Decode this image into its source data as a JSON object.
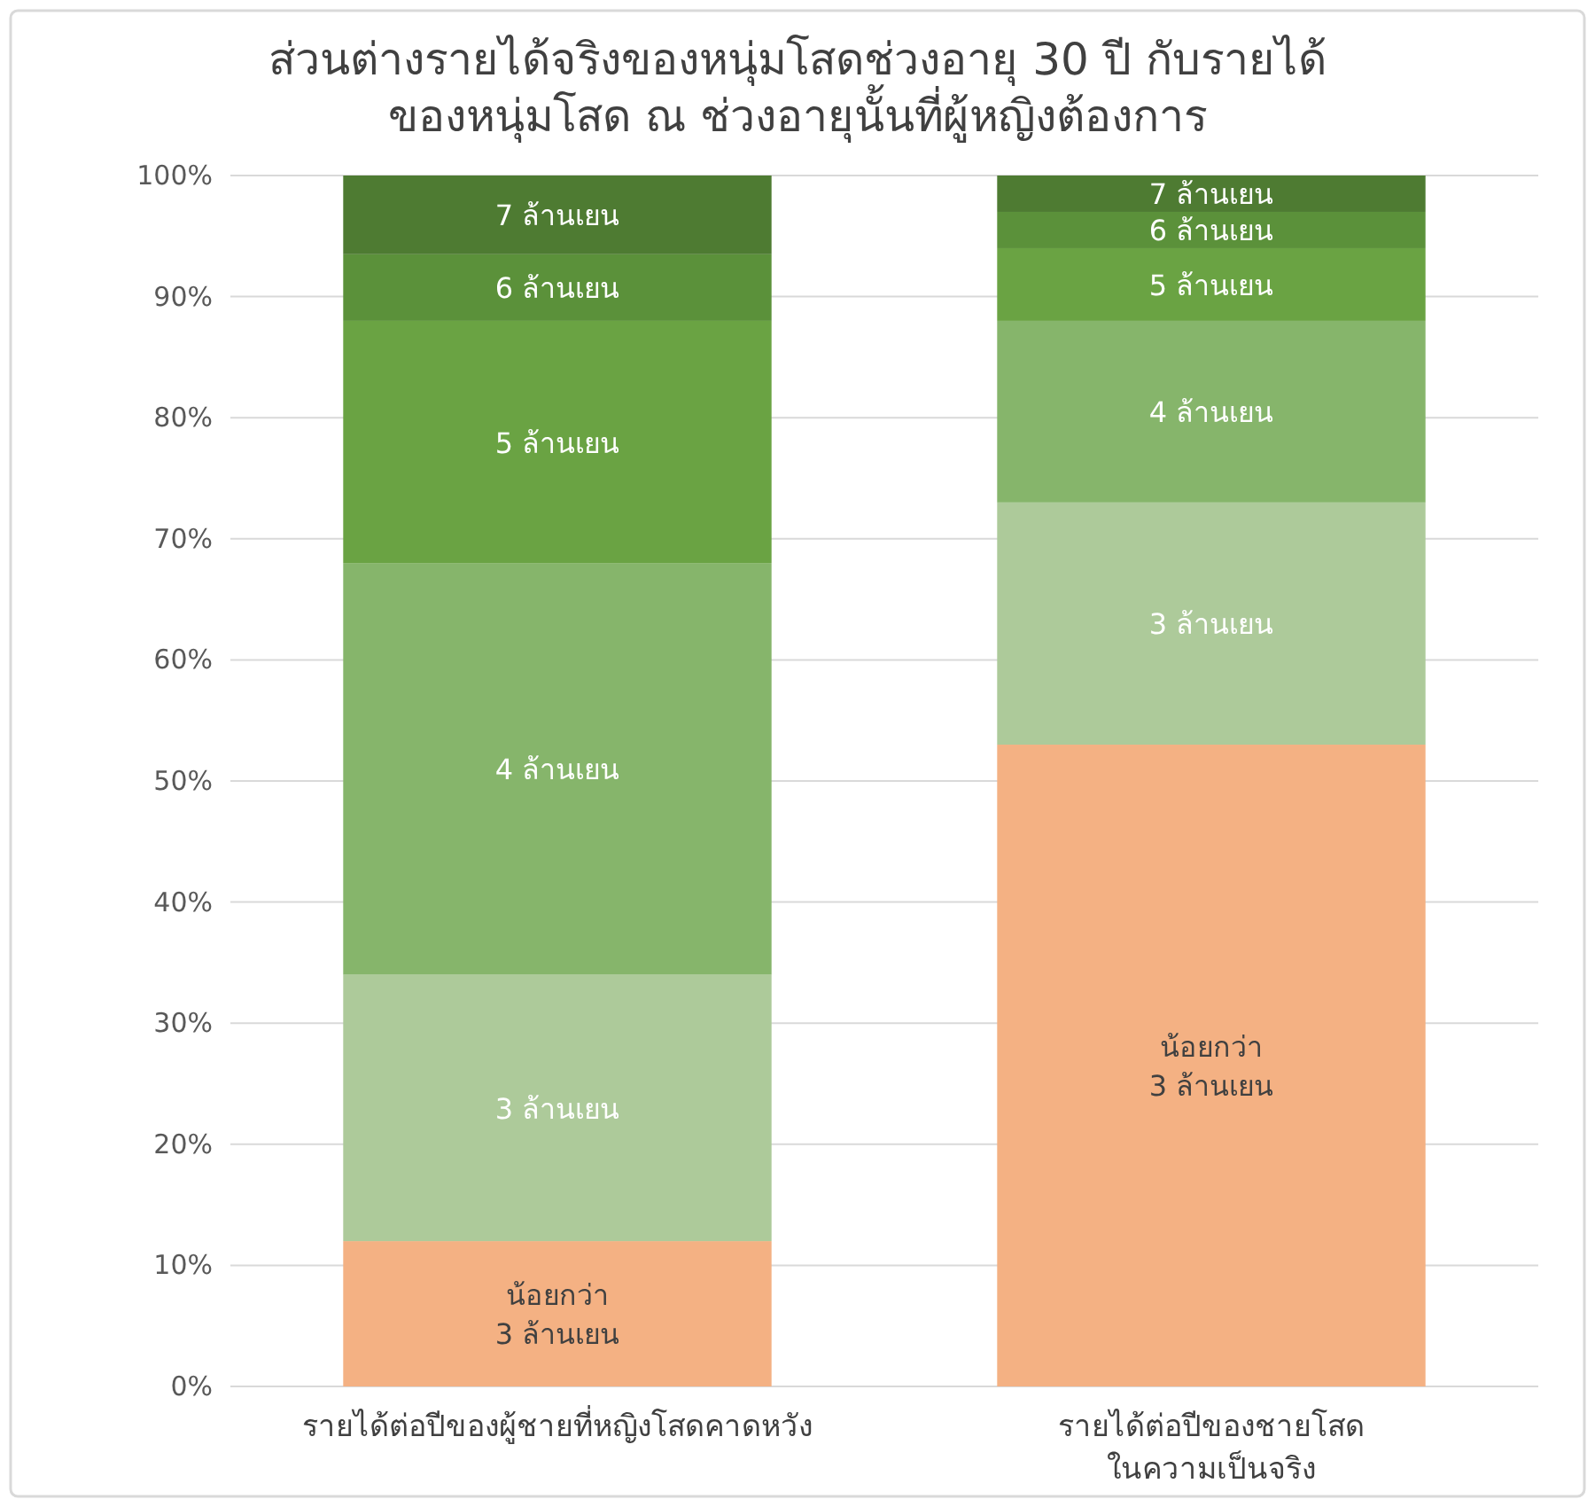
{
  "chart_data": {
    "type": "bar",
    "stacked": true,
    "title": "ส่วนต่างรายได้จริงของหนุ่มโสดช่วงอายุ 30 ปี กับรายได้\nของหนุ่มโสด ณ ช่วงอายุนั้นที่ผู้หญิงต้องการ",
    "categories": [
      "รายได้ต่อปีของผู้ชายที่หญิงโสดคาดหวัง",
      "รายได้ต่อปีของชายโสด\nในความเป็นจริง"
    ],
    "series": [
      {
        "name": "น้อยกว่า\n3 ล้านเยน",
        "color": "#f4b183",
        "values": [
          12,
          53
        ]
      },
      {
        "name": "3 ล้านเยน",
        "color": "#adca9a",
        "values": [
          22,
          20
        ]
      },
      {
        "name": "4 ล้านเยน",
        "color": "#86b56b",
        "values": [
          34,
          15
        ]
      },
      {
        "name": "5 ล้านเยน",
        "color": "#6aa343",
        "values": [
          20,
          6
        ]
      },
      {
        "name": "6 ล้านเยน",
        "color": "#5b913a",
        "values": [
          5.5,
          3
        ]
      },
      {
        "name": "7 ล้านเยน",
        "color": "#4e7b32",
        "values": [
          6.5,
          3
        ]
      }
    ],
    "ylim": [
      0,
      100
    ],
    "yticks": [
      {
        "value": 0,
        "label": "0%"
      },
      {
        "value": 10,
        "label": "10%"
      },
      {
        "value": 20,
        "label": "20%"
      },
      {
        "value": 30,
        "label": "30%"
      },
      {
        "value": 40,
        "label": "40%"
      },
      {
        "value": 50,
        "label": "50%"
      },
      {
        "value": 60,
        "label": "60%"
      },
      {
        "value": 70,
        "label": "70%"
      },
      {
        "value": 80,
        "label": "80%"
      },
      {
        "value": 90,
        "label": "90%"
      },
      {
        "value": 100,
        "label": "100%"
      }
    ],
    "grid": "y"
  }
}
